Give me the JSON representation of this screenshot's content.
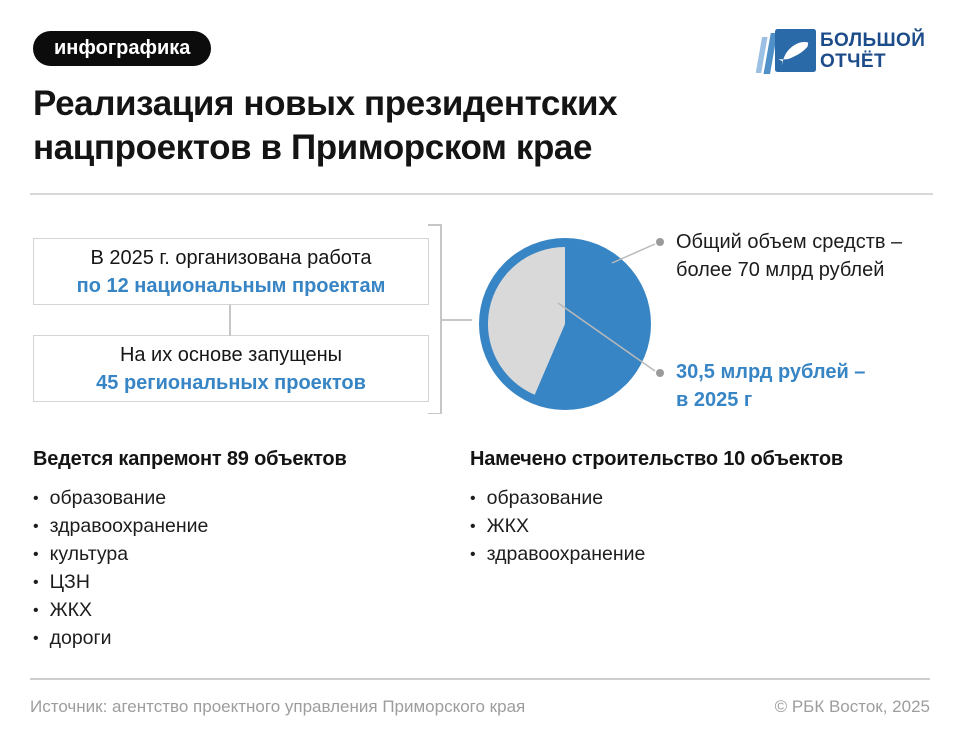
{
  "badge": {
    "label": "инфографика"
  },
  "logo": {
    "line1": "БОЛЬШОЙ",
    "line2": "ОТЧЁТ",
    "navy": "#1d4c8a",
    "square_blue": "#2b6aa8",
    "page_light": "#9cc0e4",
    "page_mid": "#4f90c9"
  },
  "title": {
    "line1": "Реализация новых президентских",
    "line2": "нацпроектов в Приморском крае"
  },
  "flow_boxes": [
    {
      "text_black": "В 2025 г. организована работа",
      "text_blue": "по 12 национальным проектам"
    },
    {
      "text_black": "На их основе запущены",
      "text_blue": "45 региональных проектов"
    }
  ],
  "chart_data": {
    "type": "pie",
    "title": "Объем средств на нацпроекты",
    "unit": "млрд рублей",
    "total": 70,
    "slices": [
      {
        "name": "Общий объем средств – более 70 млрд рублей",
        "value": 39.5,
        "color": "#3785c5"
      },
      {
        "name": "30,5 млрд рублей – в 2025 г",
        "value": 30.5,
        "color": "#d9d9d9"
      }
    ],
    "legend_position": "right-callouts",
    "gray_slice_start_angle_deg": 0,
    "gray_slice_sweep": "counterclockwise from 12 o'clock"
  },
  "callouts": [
    {
      "line1": "Общий объем средств –",
      "line2": "более 70 млрд рублей"
    },
    {
      "line1": "30,5 млрд рублей –",
      "line2": "в 2025 г"
    }
  ],
  "lists": [
    {
      "heading": "Ведется капремонт 89 объектов",
      "items": [
        "образование",
        "здравоохранение",
        "культура",
        "ЦЗН",
        "ЖКХ",
        "дороги"
      ]
    },
    {
      "heading": "Намечено строительство 10 объектов",
      "items": [
        "образование",
        "ЖКХ",
        "здравоохранение"
      ]
    }
  ],
  "footer": {
    "source": "Источник: агентство проектного управления Приморского края",
    "copyright": "© РБК Восток, 2025"
  },
  "icons": {
    "bullet": "•"
  },
  "colors": {
    "accent_blue": "#3785c5",
    "pie_gray": "#d9d9d9",
    "badge_bg": "#0c0c0c",
    "text_dark": "#141414",
    "muted_gray": "#9d9d9d",
    "line_gray": "#c6c6c6"
  }
}
